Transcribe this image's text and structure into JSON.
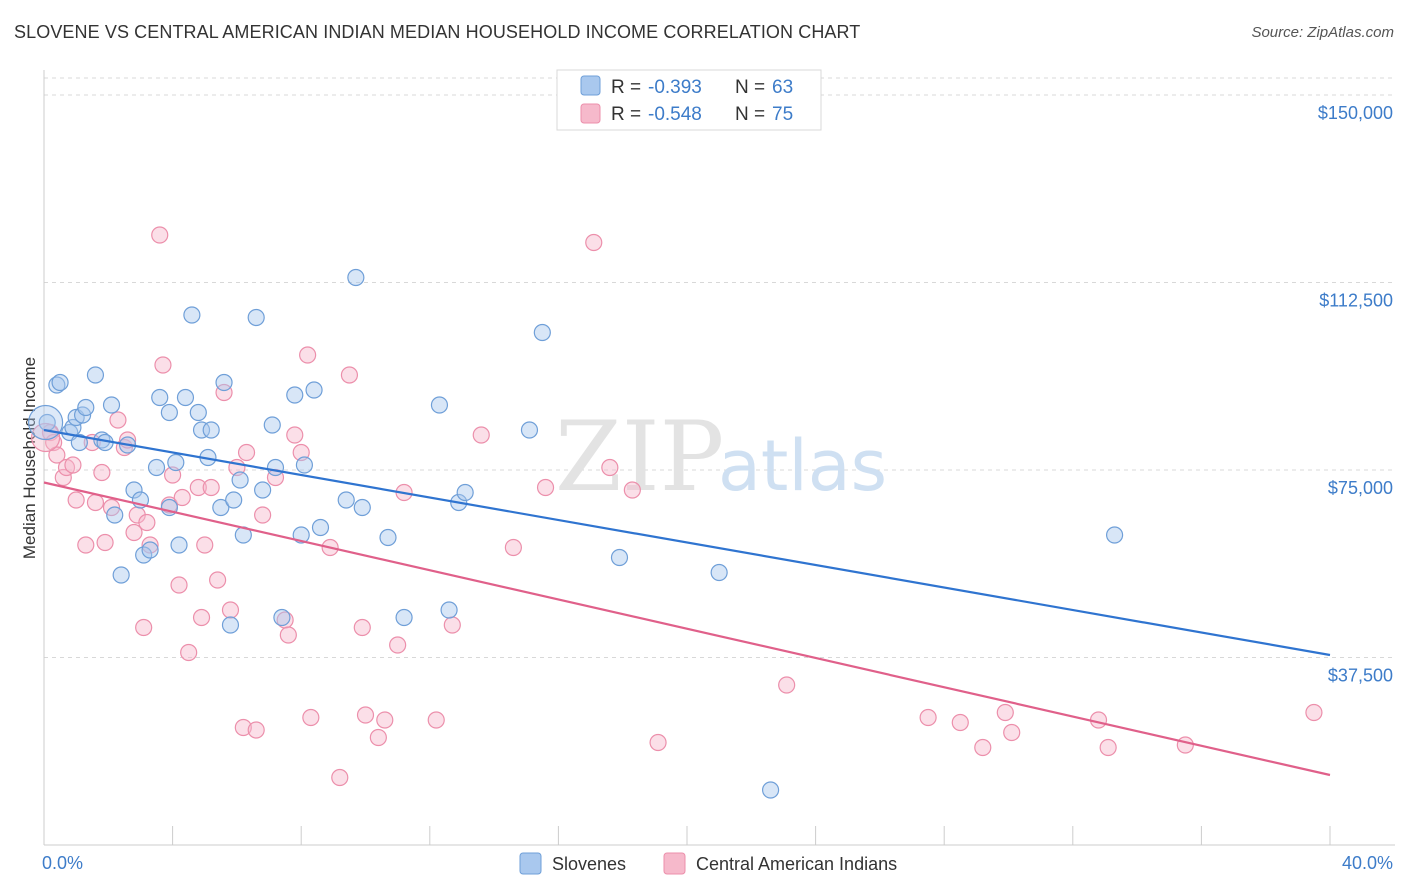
{
  "title": "SLOVENE VS CENTRAL AMERICAN INDIAN MEDIAN HOUSEHOLD INCOME CORRELATION CHART",
  "source": "Source: ZipAtlas.com",
  "watermark": {
    "part1": "ZIP",
    "part2": "atlas"
  },
  "legend": {
    "r_label": "R =",
    "n_label": "N =",
    "rows": [
      {
        "r": "-0.393",
        "n": "63"
      },
      {
        "r": "-0.548",
        "n": "75"
      }
    ]
  },
  "colors": {
    "blue_fill": "#a9c8ee",
    "blue_stroke": "#6f9fd8",
    "blue_line": "#2f74d0",
    "pink_fill": "#f6b9cb",
    "pink_stroke": "#ec8fab",
    "pink_line": "#e0608a",
    "grid": "#d8d8d8",
    "tick_text": "#3d7cc9"
  },
  "chart_data": {
    "type": "scatter",
    "title": "SLOVENE VS CENTRAL AMERICAN INDIAN MEDIAN HOUSEHOLD INCOME CORRELATION CHART",
    "xlabel": "",
    "ylabel": "Median Household Income",
    "xlim": [
      0,
      40
    ],
    "ylim": [
      0,
      155000
    ],
    "x_tick_labels": [
      "0.0%",
      "40.0%"
    ],
    "y_ticks": [
      37500,
      75000,
      112500,
      150000
    ],
    "y_tick_labels": [
      "$37,500",
      "$75,000",
      "$112,500",
      "$150,000"
    ],
    "grid": true,
    "legend_position": "top-center",
    "series": [
      {
        "name": "Slovenes",
        "color": "#6f9fd8",
        "trend": {
          "x": [
            0,
            40
          ],
          "y": [
            83000,
            38000
          ]
        },
        "points": [
          [
            0.1,
            84500
          ],
          [
            0.4,
            92000
          ],
          [
            0.5,
            92500
          ],
          [
            0.8,
            82500
          ],
          [
            0.9,
            83500
          ],
          [
            1.0,
            85500
          ],
          [
            1.1,
            80500
          ],
          [
            1.2,
            86000
          ],
          [
            1.3,
            87500
          ],
          [
            1.6,
            94000
          ],
          [
            1.8,
            81000
          ],
          [
            1.9,
            80500
          ],
          [
            2.1,
            88000
          ],
          [
            2.2,
            66000
          ],
          [
            2.4,
            54000
          ],
          [
            2.6,
            80000
          ],
          [
            2.8,
            71000
          ],
          [
            3.0,
            69000
          ],
          [
            3.1,
            58000
          ],
          [
            3.3,
            59000
          ],
          [
            3.5,
            75500
          ],
          [
            3.6,
            89500
          ],
          [
            3.9,
            67500
          ],
          [
            3.9,
            86500
          ],
          [
            4.1,
            76500
          ],
          [
            4.2,
            60000
          ],
          [
            4.4,
            89500
          ],
          [
            4.6,
            106000
          ],
          [
            4.8,
            86500
          ],
          [
            4.9,
            83000
          ],
          [
            5.1,
            77500
          ],
          [
            5.2,
            83000
          ],
          [
            5.5,
            67500
          ],
          [
            5.6,
            92500
          ],
          [
            5.8,
            44000
          ],
          [
            5.9,
            69000
          ],
          [
            6.1,
            73000
          ],
          [
            6.2,
            62000
          ],
          [
            6.6,
            105500
          ],
          [
            6.8,
            71000
          ],
          [
            7.1,
            84000
          ],
          [
            7.2,
            75500
          ],
          [
            7.4,
            45500
          ],
          [
            7.8,
            90000
          ],
          [
            8.0,
            62000
          ],
          [
            8.1,
            76000
          ],
          [
            8.4,
            91000
          ],
          [
            8.6,
            63500
          ],
          [
            9.4,
            69000
          ],
          [
            9.7,
            113500
          ],
          [
            9.9,
            67500
          ],
          [
            10.7,
            61500
          ],
          [
            11.2,
            45500
          ],
          [
            12.3,
            88000
          ],
          [
            12.6,
            47000
          ],
          [
            12.9,
            68500
          ],
          [
            13.1,
            70500
          ],
          [
            15.1,
            83000
          ],
          [
            15.5,
            102500
          ],
          [
            17.9,
            57500
          ],
          [
            21.0,
            54500
          ],
          [
            22.6,
            11000
          ],
          [
            33.3,
            62000
          ]
        ]
      },
      {
        "name": "Central American Indians",
        "color": "#ec8fab",
        "trend": {
          "x": [
            0,
            40
          ],
          "y": [
            72500,
            14000
          ]
        },
        "points": [
          [
            0.2,
            82500
          ],
          [
            0.3,
            80500
          ],
          [
            0.4,
            78000
          ],
          [
            0.6,
            73500
          ],
          [
            0.7,
            75500
          ],
          [
            0.9,
            76000
          ],
          [
            1.0,
            69000
          ],
          [
            1.3,
            60000
          ],
          [
            1.5,
            80500
          ],
          [
            1.6,
            68500
          ],
          [
            1.8,
            74500
          ],
          [
            1.9,
            60500
          ],
          [
            2.1,
            67500
          ],
          [
            2.3,
            85000
          ],
          [
            2.5,
            79500
          ],
          [
            2.6,
            81000
          ],
          [
            2.8,
            62500
          ],
          [
            2.9,
            66000
          ],
          [
            3.2,
            64500
          ],
          [
            3.3,
            60000
          ],
          [
            3.1,
            43500
          ],
          [
            3.6,
            122000
          ],
          [
            3.7,
            96000
          ],
          [
            3.9,
            68000
          ],
          [
            4.0,
            74000
          ],
          [
            4.2,
            52000
          ],
          [
            4.3,
            69500
          ],
          [
            4.5,
            38500
          ],
          [
            4.8,
            71500
          ],
          [
            4.9,
            45500
          ],
          [
            5.0,
            60000
          ],
          [
            5.2,
            71500
          ],
          [
            5.4,
            53000
          ],
          [
            5.6,
            90500
          ],
          [
            5.8,
            47000
          ],
          [
            6.0,
            75500
          ],
          [
            6.2,
            23500
          ],
          [
            6.3,
            78500
          ],
          [
            6.6,
            23000
          ],
          [
            6.8,
            66000
          ],
          [
            7.2,
            73500
          ],
          [
            7.5,
            45000
          ],
          [
            7.6,
            42000
          ],
          [
            7.8,
            82000
          ],
          [
            8.0,
            78500
          ],
          [
            8.2,
            98000
          ],
          [
            8.3,
            25500
          ],
          [
            8.9,
            59500
          ],
          [
            9.2,
            13500
          ],
          [
            9.5,
            94000
          ],
          [
            9.9,
            43500
          ],
          [
            10.0,
            26000
          ],
          [
            10.4,
            21500
          ],
          [
            10.6,
            25000
          ],
          [
            11.0,
            40000
          ],
          [
            11.2,
            70500
          ],
          [
            12.2,
            25000
          ],
          [
            12.7,
            44000
          ],
          [
            13.6,
            82000
          ],
          [
            14.6,
            59500
          ],
          [
            15.6,
            71500
          ],
          [
            17.1,
            120500
          ],
          [
            17.6,
            75500
          ],
          [
            18.3,
            71000
          ],
          [
            19.1,
            20500
          ],
          [
            23.1,
            32000
          ],
          [
            27.5,
            25500
          ],
          [
            28.5,
            24500
          ],
          [
            29.2,
            19500
          ],
          [
            29.9,
            26500
          ],
          [
            30.1,
            22500
          ],
          [
            32.8,
            25000
          ],
          [
            33.1,
            19500
          ],
          [
            35.5,
            20000
          ],
          [
            39.5,
            26500
          ]
        ]
      }
    ]
  }
}
